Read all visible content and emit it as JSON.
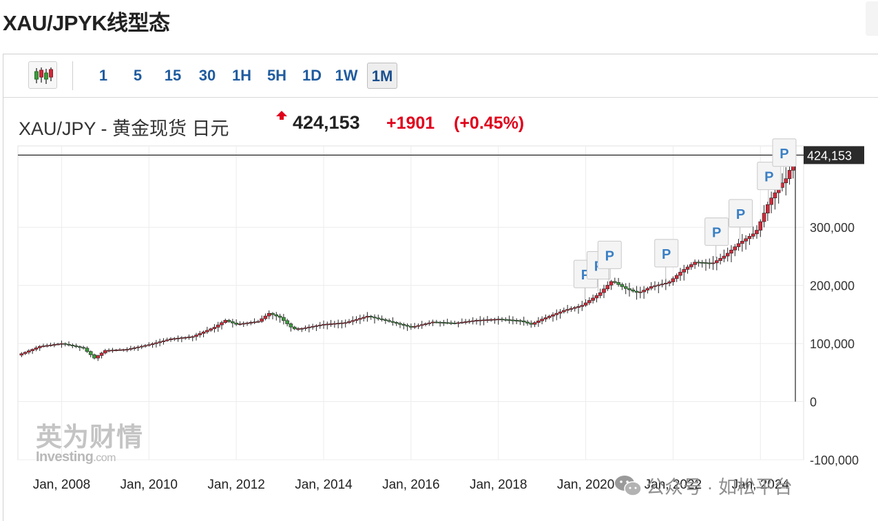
{
  "page": {
    "title": "XAU/JPYK线型态"
  },
  "toolbar": {
    "chart_type_icon": "candlestick-icon",
    "timeframes": [
      "1",
      "5",
      "15",
      "30",
      "1H",
      "5H",
      "1D",
      "1W",
      "1M"
    ],
    "active_timeframe": "1M"
  },
  "quote": {
    "name": "XAU/JPY - 黄金现货 日元",
    "direction_icon": "up-arrow-icon",
    "price": "424,153",
    "change": "+1901",
    "change_pct": "(+0.45%)",
    "change_color": "#e0001b"
  },
  "watermark": {
    "cn": "英为财情",
    "en": "Investing",
    "en_suffix": ".com"
  },
  "overlay": {
    "wechat_text": "公众号 · 如松平台"
  },
  "chart_data": {
    "type": "candlestick",
    "interval": "1M",
    "ylim": [
      -100000,
      440000
    ],
    "y_ticks": [
      "300,000",
      "200,000",
      "100,000",
      "0",
      "-100,000"
    ],
    "y_tick_values": [
      300000,
      200000,
      100000,
      0,
      -100000
    ],
    "x_ticks": [
      "Jan, 2008",
      "Jan, 2010",
      "Jan, 2012",
      "Jan, 2014",
      "Jan, 2016",
      "Jan, 2018",
      "Jan, 2020",
      "Jan, 2022",
      "Jan, 2024"
    ],
    "x_tick_years": [
      2008,
      2010,
      2012,
      2014,
      2016,
      2018,
      2020,
      2022,
      2024
    ],
    "x_range_years": [
      2007.0,
      2024.8
    ],
    "current_price": 424153,
    "current_price_label": "424,153",
    "up_color": "#cf2a3a",
    "down_color": "#3d9a3d",
    "grid": true,
    "event_flag_label": "P",
    "event_flags": [
      2019.95,
      2020.25,
      2020.5,
      2021.8,
      2022.95,
      2023.5,
      2024.15,
      2024.5
    ],
    "closes": [
      {
        "t": 2007.0,
        "v": 80000
      },
      {
        "t": 2007.5,
        "v": 95000
      },
      {
        "t": 2008.0,
        "v": 100000
      },
      {
        "t": 2008.5,
        "v": 92000
      },
      {
        "t": 2008.75,
        "v": 75000
      },
      {
        "t": 2009.0,
        "v": 88000
      },
      {
        "t": 2009.5,
        "v": 90000
      },
      {
        "t": 2010.0,
        "v": 98000
      },
      {
        "t": 2010.5,
        "v": 108000
      },
      {
        "t": 2011.0,
        "v": 112000
      },
      {
        "t": 2011.5,
        "v": 128000
      },
      {
        "t": 2011.75,
        "v": 140000
      },
      {
        "t": 2012.0,
        "v": 133000
      },
      {
        "t": 2012.5,
        "v": 138000
      },
      {
        "t": 2012.75,
        "v": 152000
      },
      {
        "t": 2013.0,
        "v": 145000
      },
      {
        "t": 2013.3,
        "v": 125000
      },
      {
        "t": 2013.5,
        "v": 126000
      },
      {
        "t": 2014.0,
        "v": 133000
      },
      {
        "t": 2014.5,
        "v": 136000
      },
      {
        "t": 2015.0,
        "v": 147000
      },
      {
        "t": 2015.5,
        "v": 138000
      },
      {
        "t": 2016.0,
        "v": 128000
      },
      {
        "t": 2016.5,
        "v": 137000
      },
      {
        "t": 2017.0,
        "v": 135000
      },
      {
        "t": 2017.5,
        "v": 140000
      },
      {
        "t": 2018.0,
        "v": 142000
      },
      {
        "t": 2018.5,
        "v": 139000
      },
      {
        "t": 2018.75,
        "v": 133000
      },
      {
        "t": 2019.0,
        "v": 142000
      },
      {
        "t": 2019.5,
        "v": 157000
      },
      {
        "t": 2019.9,
        "v": 165000
      },
      {
        "t": 2020.3,
        "v": 185000
      },
      {
        "t": 2020.6,
        "v": 208000
      },
      {
        "t": 2020.9,
        "v": 195000
      },
      {
        "t": 2021.2,
        "v": 187000
      },
      {
        "t": 2021.5,
        "v": 198000
      },
      {
        "t": 2021.9,
        "v": 205000
      },
      {
        "t": 2022.2,
        "v": 225000
      },
      {
        "t": 2022.5,
        "v": 240000
      },
      {
        "t": 2022.9,
        "v": 238000
      },
      {
        "t": 2023.2,
        "v": 252000
      },
      {
        "t": 2023.5,
        "v": 272000
      },
      {
        "t": 2023.9,
        "v": 292000
      },
      {
        "t": 2024.2,
        "v": 345000
      },
      {
        "t": 2024.45,
        "v": 372000
      },
      {
        "t": 2024.6,
        "v": 385000
      },
      {
        "t": 2024.8,
        "v": 424153
      }
    ]
  }
}
